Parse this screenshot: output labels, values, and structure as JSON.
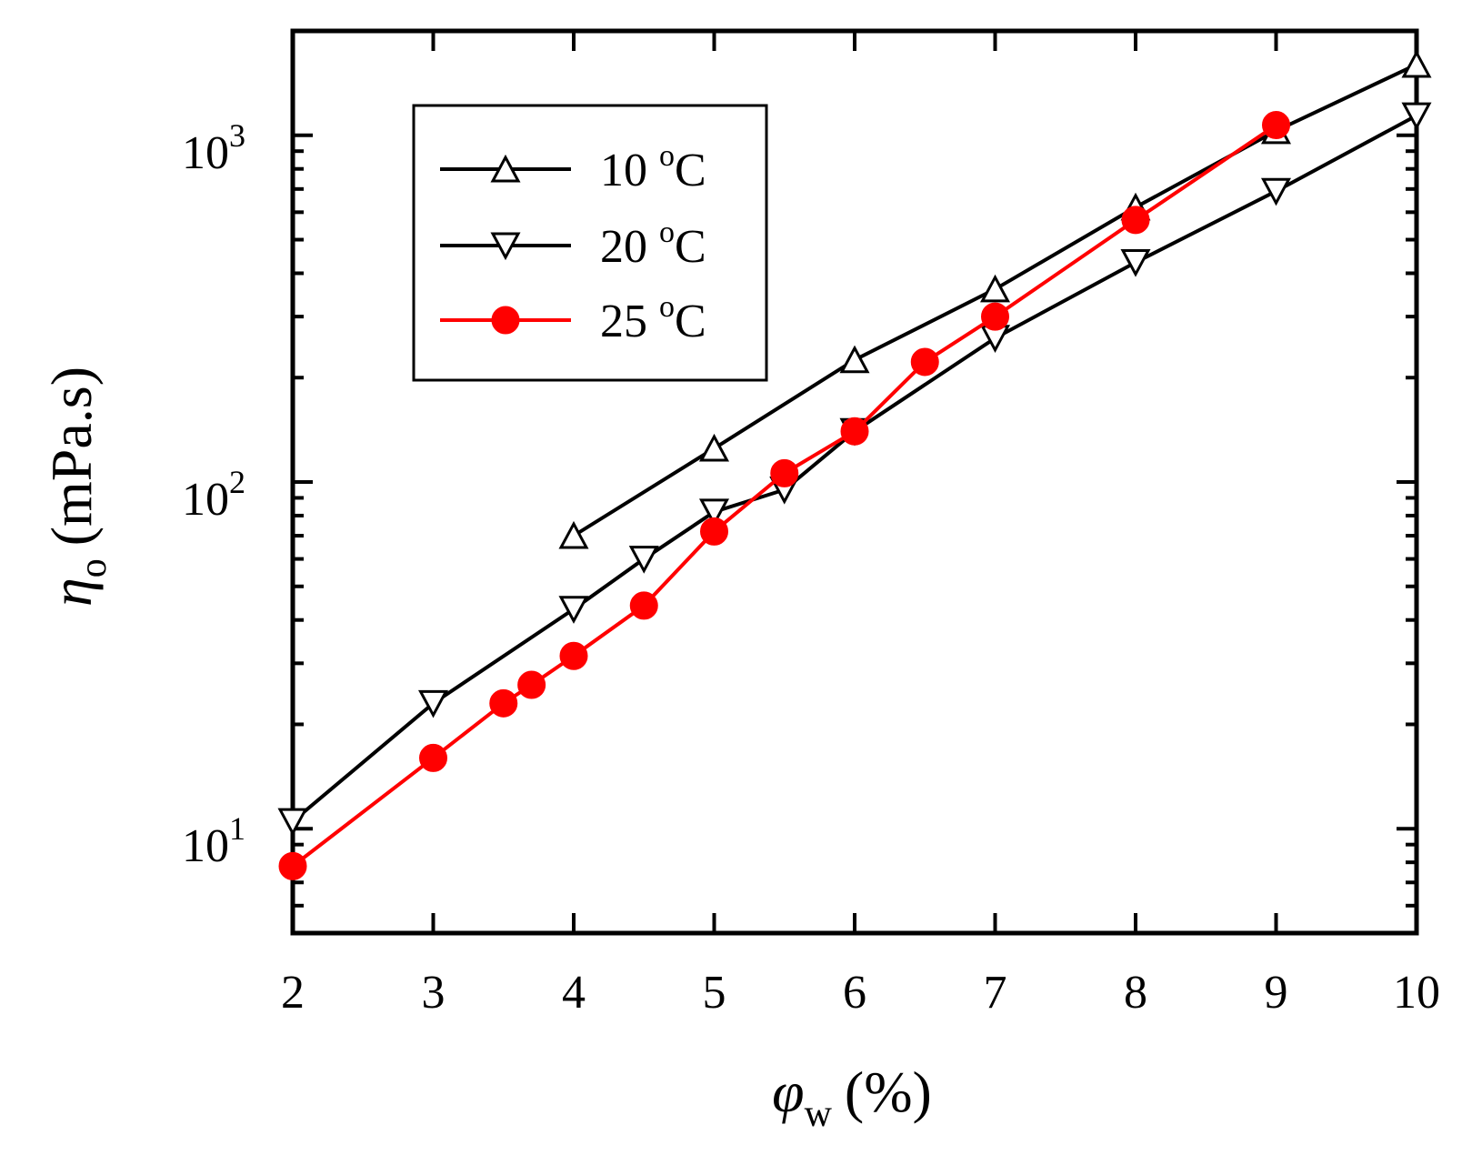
{
  "chart_data": {
    "type": "line",
    "title": "",
    "xlabel": {
      "symbol": "φ",
      "subscript": "w",
      "unit": "(%)"
    },
    "ylabel": {
      "symbol": "η",
      "subscript": "o",
      "unit": "(mPa.s)"
    },
    "xlim": [
      2,
      10
    ],
    "ylim": [
      5,
      2000
    ],
    "yscale": "log",
    "grid": false,
    "legend_position": "top-left",
    "x_ticks": [
      2,
      3,
      4,
      5,
      6,
      7,
      8,
      9,
      10
    ],
    "x_tick_labels": [
      "2",
      "3",
      "4",
      "5",
      "6",
      "7",
      "8",
      "9",
      "10"
    ],
    "y_ticks_major": [
      10,
      100,
      1000
    ],
    "y_tick_labels": [
      {
        "base": "10",
        "exp": "1"
      },
      {
        "base": "10",
        "exp": "2"
      },
      {
        "base": "10",
        "exp": "3"
      }
    ],
    "series": [
      {
        "name": "10 °C",
        "legend_label": {
          "number": "10",
          "deg": "o",
          "unit": "C"
        },
        "color": "#000000",
        "marker": "triangle-up",
        "marker_filled": false,
        "x": [
          4,
          5,
          6,
          7,
          8,
          9,
          10
        ],
        "y": [
          70,
          125,
          225,
          360,
          620,
          1030,
          1600
        ]
      },
      {
        "name": "20 °C",
        "legend_label": {
          "number": "20",
          "deg": "o",
          "unit": "C"
        },
        "color": "#000000",
        "marker": "triangle-down",
        "marker_filled": false,
        "x": [
          2,
          3,
          4,
          4.5,
          5,
          5.5,
          6,
          7,
          8,
          9,
          10
        ],
        "y": [
          10.5,
          23,
          43,
          60,
          82,
          95,
          140,
          260,
          430,
          690,
          1140
        ]
      },
      {
        "name": "25 °C",
        "legend_label": {
          "number": "25",
          "deg": "o",
          "unit": "C"
        },
        "color": "#ff0000",
        "marker": "circle",
        "marker_filled": true,
        "x": [
          2,
          3,
          3.5,
          3.7,
          4,
          4.5,
          5,
          5.5,
          6,
          6.5,
          7,
          8,
          9
        ],
        "y": [
          7.8,
          16,
          23,
          26,
          31.5,
          44,
          72,
          106,
          140,
          222,
          300,
          570,
          1070
        ]
      }
    ]
  }
}
